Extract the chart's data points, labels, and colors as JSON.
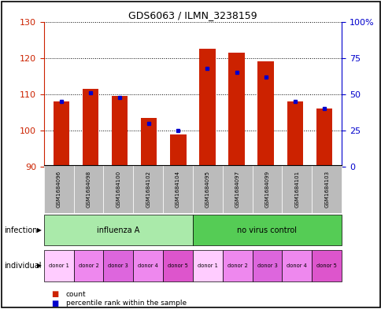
{
  "title": "GDS6063 / ILMN_3238159",
  "samples": [
    "GSM1684096",
    "GSM1684098",
    "GSM1684100",
    "GSM1684102",
    "GSM1684104",
    "GSM1684095",
    "GSM1684097",
    "GSM1684099",
    "GSM1684101",
    "GSM1684103"
  ],
  "counts": [
    108,
    111.5,
    109.5,
    103.5,
    99,
    122.5,
    121.5,
    119,
    108,
    106
  ],
  "percentiles": [
    45,
    51,
    48,
    30,
    25,
    68,
    65,
    62,
    45,
    40
  ],
  "ylim_left": [
    90,
    130
  ],
  "ylim_right": [
    0,
    100
  ],
  "yticks_left": [
    90,
    100,
    110,
    120,
    130
  ],
  "yticks_right": [
    0,
    25,
    50,
    75,
    100
  ],
  "ytick_labels_right": [
    "0",
    "25",
    "50",
    "75",
    "100%"
  ],
  "bar_color": "#cc2200",
  "dot_color": "#0000cc",
  "bar_bottom": 90,
  "infection_groups": [
    {
      "label": "influenza A",
      "start": 0,
      "end": 5,
      "color": "#aaeaaa"
    },
    {
      "label": "no virus control",
      "start": 5,
      "end": 10,
      "color": "#55cc55"
    }
  ],
  "individual_labels": [
    "donor 1",
    "donor 2",
    "donor 3",
    "donor 4",
    "donor 5",
    "donor 1",
    "donor 2",
    "donor 3",
    "donor 4",
    "donor 5"
  ],
  "individual_colors": [
    "#ffccff",
    "#ff99ee",
    "#ee77dd",
    "#dd55cc",
    "#cc33bb",
    "#ffccff",
    "#ff99ee",
    "#ee77dd",
    "#dd55cc",
    "#cc33bb"
  ],
  "row_label_infection": "infection",
  "row_label_individual": "individual",
  "legend_count_color": "#cc2200",
  "legend_dot_color": "#0000cc",
  "bar_width": 0.55,
  "axis_color_left": "#cc2200",
  "axis_color_right": "#0000cc",
  "background_color": "#ffffff",
  "tick_label_area_color": "#bbbbbb"
}
